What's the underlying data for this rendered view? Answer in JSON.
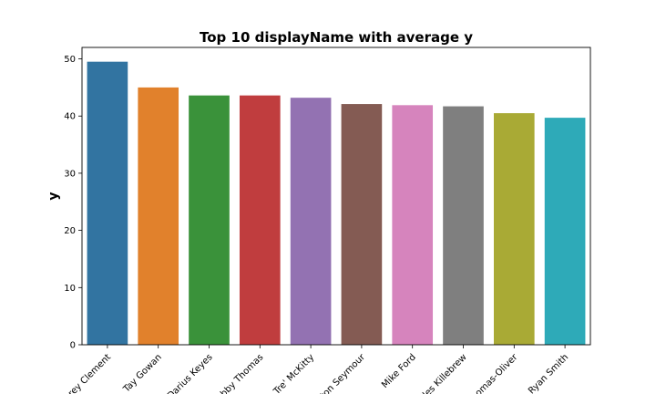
{
  "chart_data": {
    "type": "bar",
    "title": "Top 10 displayName with average y",
    "xlabel": "",
    "ylabel": "y",
    "ylim": [
      0,
      52
    ],
    "yticks": [
      0,
      10,
      20,
      30,
      40,
      50
    ],
    "categories": [
      "Corey Clement",
      "Tay Gowan",
      "Darius Keyes",
      "Bobby Thomas",
      "Tre' McKitty",
      "Dalton Seymour",
      "Mike Ford",
      "Miles Killebrew",
      "Thomas-Oliver",
      "Ryan Smith"
    ],
    "values": [
      49.5,
      45.0,
      43.6,
      43.6,
      43.2,
      42.1,
      41.9,
      41.7,
      40.5,
      39.7
    ],
    "colors": [
      "#3274a1",
      "#e1812c",
      "#3a923a",
      "#c03d3e",
      "#9372b2",
      "#845b53",
      "#d684bd",
      "#7f7f7f",
      "#a9aa35",
      "#2eaab8"
    ],
    "grid": false,
    "legend": "none"
  }
}
